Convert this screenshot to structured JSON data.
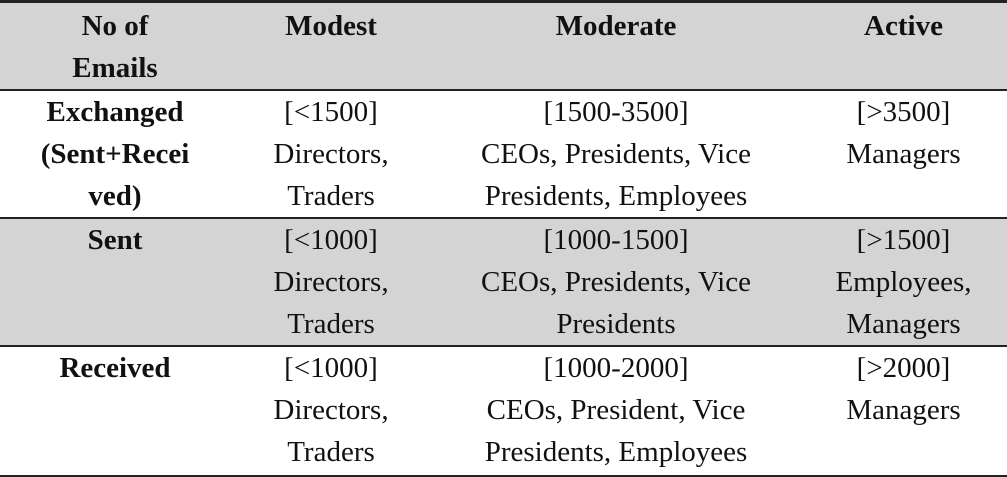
{
  "table": {
    "headers": [
      [
        "No of",
        "Emails"
      ],
      [
        "Modest"
      ],
      [
        "Moderate"
      ],
      [
        "Active"
      ]
    ],
    "rows": [
      {
        "label": [
          "Exchanged",
          "(Sent+Recei",
          "ved)"
        ],
        "modest": [
          "[<1500]",
          "Directors,",
          "Traders"
        ],
        "moderate": [
          "[1500-3500]",
          "CEOs, Presidents, Vice",
          "Presidents, Employees"
        ],
        "active": [
          "[>3500]",
          "Managers"
        ]
      },
      {
        "label": [
          "Sent"
        ],
        "modest": [
          "[<1000]",
          "Directors,",
          "Traders"
        ],
        "moderate": [
          "[1000-1500]",
          "CEOs, Presidents, Vice",
          "Presidents"
        ],
        "active": [
          "[>1500]",
          "Employees,",
          "Managers"
        ]
      },
      {
        "label": [
          "Received"
        ],
        "modest": [
          "[<1000]",
          "Directors,",
          "Traders"
        ],
        "moderate": [
          "[1000-2000]",
          "CEOs, President, Vice",
          "Presidents, Employees"
        ],
        "active": [
          "[>2000]",
          "Managers"
        ]
      }
    ]
  }
}
